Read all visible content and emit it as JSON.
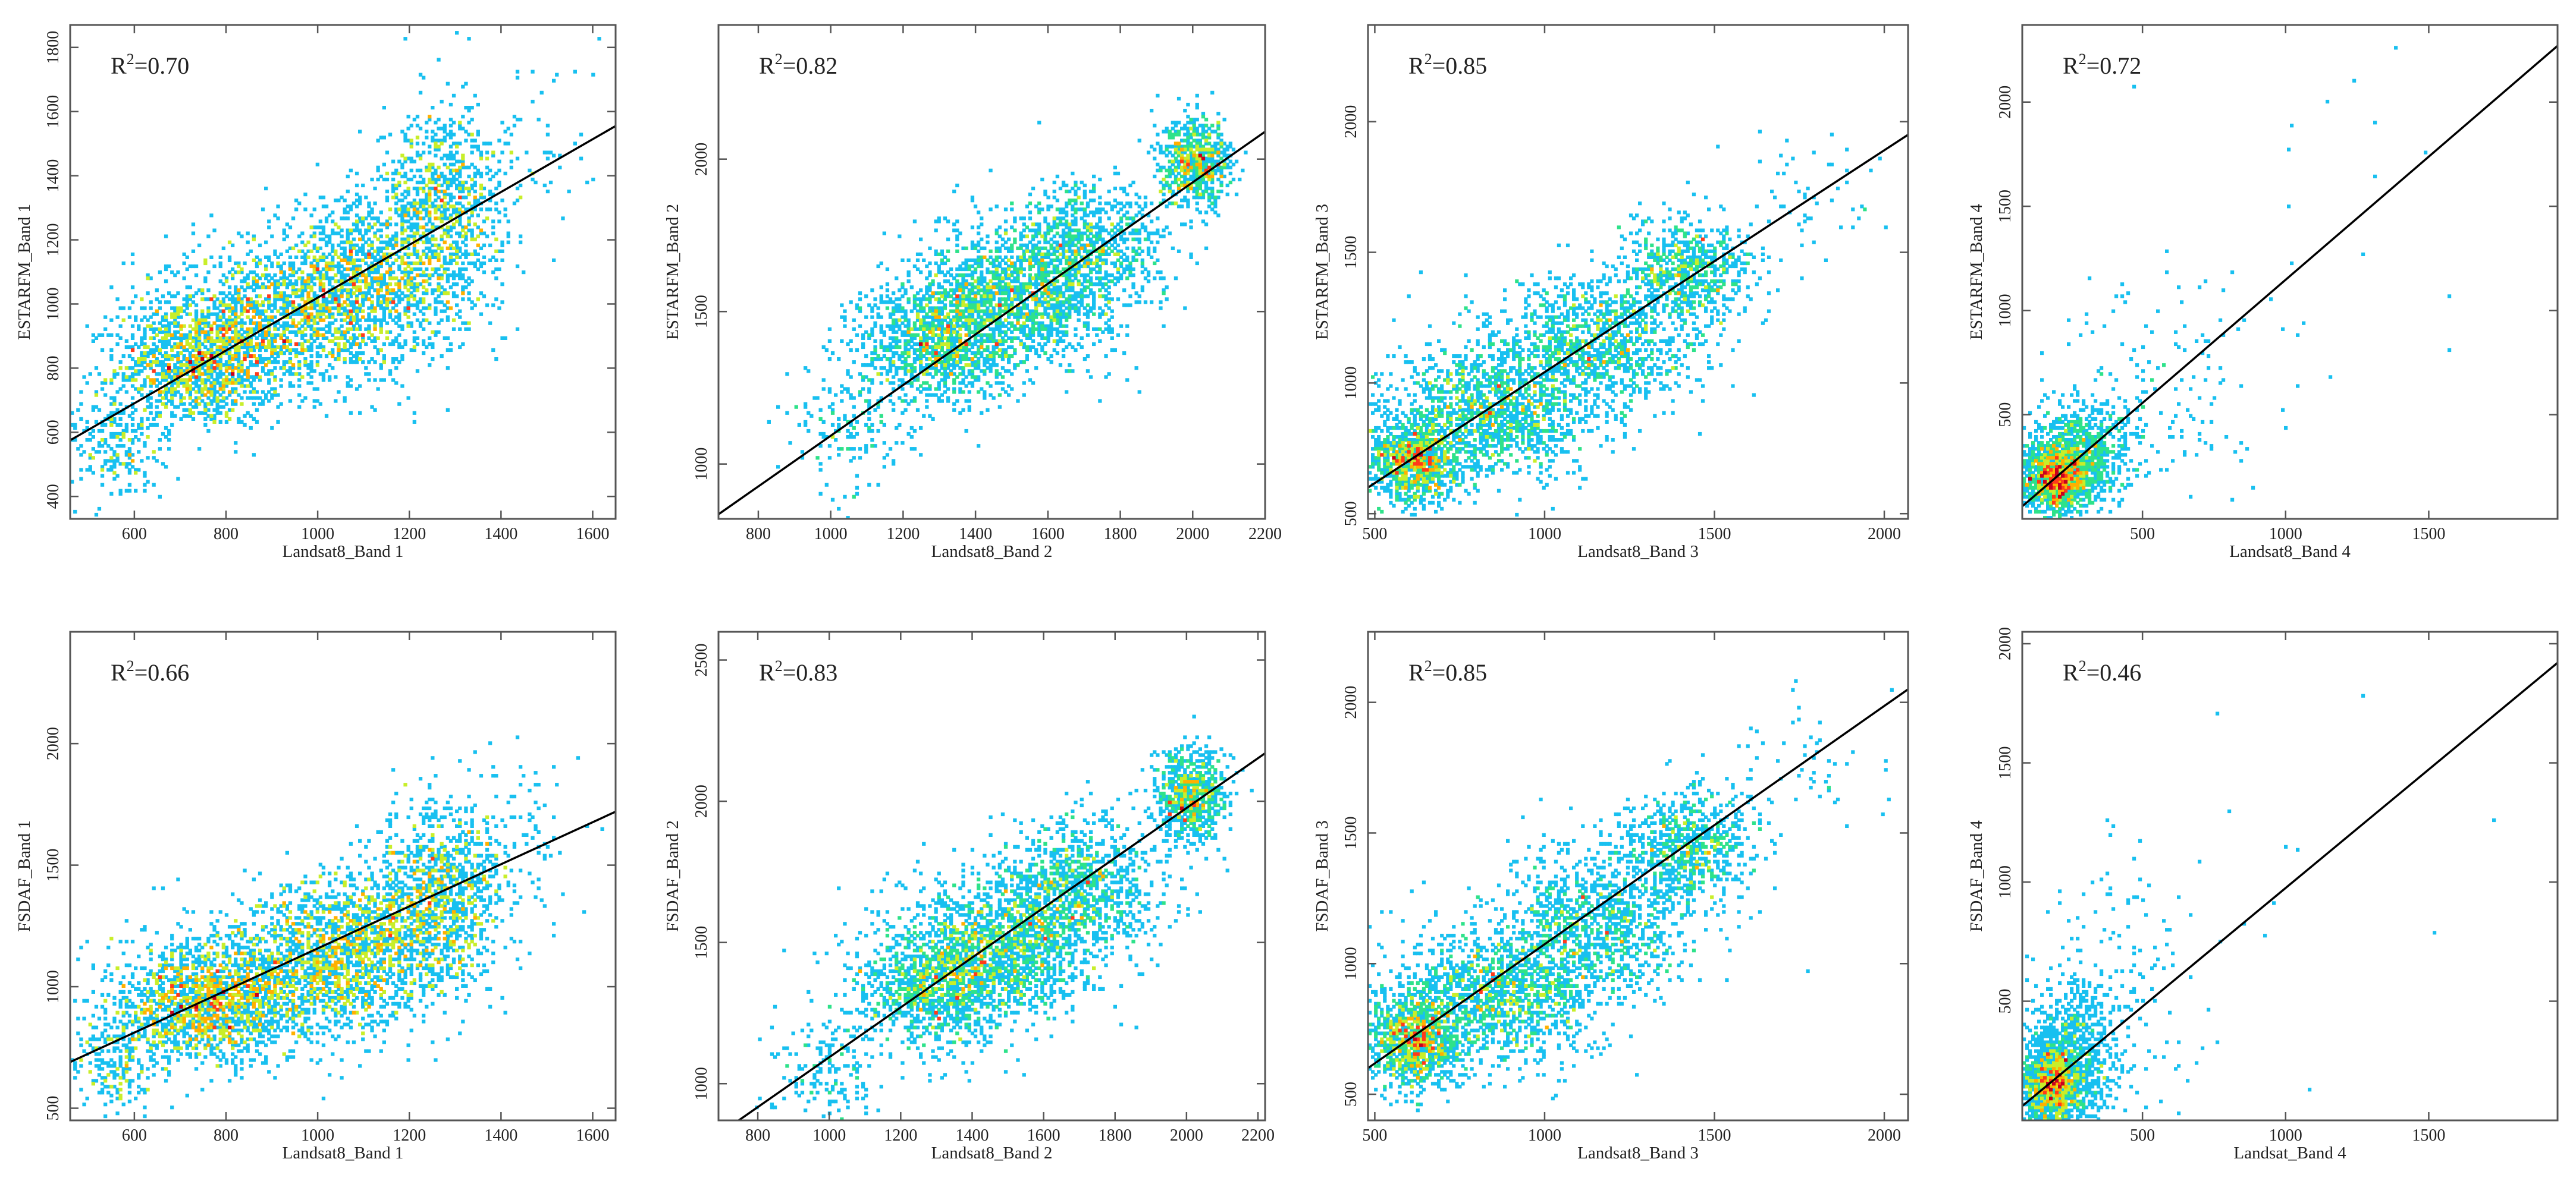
{
  "figure": {
    "colormap": [
      "#3a1d9e",
      "#1f5bff",
      "#18c0f0",
      "#2ee28a",
      "#c8ee2a",
      "#ffb000",
      "#ff3a1a",
      "#c8001e"
    ],
    "fit_line_color": "#000000",
    "frame_color": "#555555"
  },
  "chart_data": [
    {
      "id": "estarfm-b1",
      "type": "scatter",
      "subtype": "density-scatter",
      "xlabel": "Landsat8_Band 1",
      "ylabel": "ESTARFM_Band 1",
      "r2_text": "0.70",
      "xlim": [
        460,
        1650
      ],
      "ylim": [
        330,
        1870
      ],
      "xticks": [
        600,
        800,
        1000,
        1200,
        1400,
        1600
      ],
      "yticks": [
        400,
        600,
        800,
        1000,
        1200,
        1400,
        1600,
        1800
      ],
      "fit_line": [
        [
          460,
          575
        ],
        [
          1650,
          1555
        ]
      ],
      "clusters": [
        {
          "x": 740,
          "y": 800,
          "sx": 90,
          "sy": 90,
          "w": 1.2
        },
        {
          "x": 900,
          "y": 950,
          "sx": 150,
          "sy": 110,
          "w": 1.6
        },
        {
          "x": 1100,
          "y": 1080,
          "sx": 110,
          "sy": 120,
          "w": 1.3
        },
        {
          "x": 1270,
          "y": 1300,
          "sx": 70,
          "sy": 150,
          "w": 1.0
        },
        {
          "x": 560,
          "y": 560,
          "sx": 50,
          "sy": 90,
          "w": 0.25
        },
        {
          "x": 1450,
          "y": 1500,
          "sx": 80,
          "sy": 150,
          "w": 0.08
        }
      ]
    },
    {
      "id": "estarfm-b2",
      "type": "scatter",
      "subtype": "density-scatter",
      "xlabel": "Landsat8_Band 2",
      "ylabel": "ESTARFM_Band 2",
      "r2_text": "0.82",
      "xlim": [
        690,
        2200
      ],
      "ylim": [
        820,
        2440
      ],
      "xticks": [
        800,
        1000,
        1200,
        1400,
        1600,
        1800,
        2000,
        2200
      ],
      "yticks": [
        1000,
        1500,
        2000
      ],
      "fit_line": [
        [
          690,
          835
        ],
        [
          2200,
          2090
        ]
      ],
      "clusters": [
        {
          "x": 1300,
          "y": 1400,
          "sx": 110,
          "sy": 100,
          "w": 1.3
        },
        {
          "x": 1500,
          "y": 1550,
          "sx": 130,
          "sy": 110,
          "w": 1.5
        },
        {
          "x": 1700,
          "y": 1700,
          "sx": 110,
          "sy": 110,
          "w": 1.0
        },
        {
          "x": 2010,
          "y": 1990,
          "sx": 50,
          "sy": 70,
          "w": 0.8
        },
        {
          "x": 1050,
          "y": 1130,
          "sx": 80,
          "sy": 100,
          "w": 0.2
        }
      ]
    },
    {
      "id": "estarfm-b3",
      "type": "scatter",
      "subtype": "density-scatter",
      "xlabel": "Landsat8_Band 3",
      "ylabel": "ESTARFM_Band 3",
      "r2_text": "0.85",
      "xlim": [
        480,
        2070
      ],
      "ylim": [
        480,
        2370
      ],
      "xticks": [
        500,
        1000,
        1500,
        2000
      ],
      "yticks": [
        500,
        1000,
        1500,
        2000
      ],
      "fit_line": [
        [
          480,
          600
        ],
        [
          2070,
          1950
        ]
      ],
      "clusters": [
        {
          "x": 620,
          "y": 700,
          "sx": 70,
          "sy": 80,
          "w": 1.2
        },
        {
          "x": 850,
          "y": 900,
          "sx": 150,
          "sy": 120,
          "w": 1.5
        },
        {
          "x": 1150,
          "y": 1150,
          "sx": 150,
          "sy": 130,
          "w": 1.2
        },
        {
          "x": 1420,
          "y": 1430,
          "sx": 100,
          "sy": 100,
          "w": 0.8
        },
        {
          "x": 1800,
          "y": 1700,
          "sx": 120,
          "sy": 120,
          "w": 0.06
        }
      ]
    },
    {
      "id": "estarfm-b4",
      "type": "scatter",
      "subtype": "density-scatter",
      "xlabel": "Landsat8_Band 4",
      "ylabel": "ESTARFM_Band 4",
      "r2_text": "0.72",
      "xlim": [
        80,
        1950
      ],
      "ylim": [
        0,
        2370
      ],
      "xticks": [
        500,
        1000,
        1500
      ],
      "yticks": [
        500,
        1000,
        1500,
        2000
      ],
      "fit_line": [
        [
          80,
          60
        ],
        [
          1950,
          2270
        ]
      ],
      "clusters": [
        {
          "x": 200,
          "y": 200,
          "sx": 60,
          "sy": 80,
          "w": 1.5
        },
        {
          "x": 300,
          "y": 330,
          "sx": 90,
          "sy": 120,
          "w": 0.8
        },
        {
          "x": 600,
          "y": 650,
          "sx": 200,
          "sy": 260,
          "w": 0.15
        },
        {
          "x": 1200,
          "y": 1500,
          "sx": 300,
          "sy": 400,
          "w": 0.015
        }
      ]
    },
    {
      "id": "fsdaf-b1",
      "type": "scatter",
      "subtype": "density-scatter",
      "xlabel": "Landsat8_Band 1",
      "ylabel": "FSDAF_Band 1",
      "r2_text": "0.66",
      "xlim": [
        460,
        1650
      ],
      "ylim": [
        450,
        2460
      ],
      "xticks": [
        600,
        800,
        1000,
        1200,
        1400,
        1600
      ],
      "yticks": [
        500,
        1000,
        1500,
        2000
      ],
      "fit_line": [
        [
          460,
          690
        ],
        [
          1650,
          1720
        ]
      ],
      "clusters": [
        {
          "x": 740,
          "y": 900,
          "sx": 90,
          "sy": 110,
          "w": 1.2
        },
        {
          "x": 900,
          "y": 1030,
          "sx": 150,
          "sy": 140,
          "w": 1.6
        },
        {
          "x": 1100,
          "y": 1200,
          "sx": 110,
          "sy": 150,
          "w": 1.3
        },
        {
          "x": 1270,
          "y": 1400,
          "sx": 70,
          "sy": 180,
          "w": 1.0
        },
        {
          "x": 560,
          "y": 700,
          "sx": 50,
          "sy": 110,
          "w": 0.25
        },
        {
          "x": 1450,
          "y": 1650,
          "sx": 80,
          "sy": 200,
          "w": 0.08
        }
      ]
    },
    {
      "id": "fsdaf-b2",
      "type": "scatter",
      "subtype": "density-scatter",
      "xlabel": "Landsat8_Band 2",
      "ylabel": "FSDAF_Band 2",
      "r2_text": "0.83",
      "xlim": [
        690,
        2220
      ],
      "ylim": [
        870,
        2600
      ],
      "xticks": [
        800,
        1000,
        1200,
        1400,
        1600,
        1800,
        2000,
        2200
      ],
      "yticks": [
        1000,
        1500,
        2000,
        2500
      ],
      "fit_line": [
        [
          690,
          820
        ],
        [
          2220,
          2170
        ]
      ],
      "clusters": [
        {
          "x": 1300,
          "y": 1350,
          "sx": 110,
          "sy": 110,
          "w": 1.3
        },
        {
          "x": 1500,
          "y": 1500,
          "sx": 130,
          "sy": 120,
          "w": 1.5
        },
        {
          "x": 1700,
          "y": 1700,
          "sx": 110,
          "sy": 120,
          "w": 1.0
        },
        {
          "x": 2010,
          "y": 2010,
          "sx": 50,
          "sy": 80,
          "w": 0.8
        },
        {
          "x": 1000,
          "y": 1050,
          "sx": 80,
          "sy": 100,
          "w": 0.2
        }
      ]
    },
    {
      "id": "fsdaf-b3",
      "type": "scatter",
      "subtype": "density-scatter",
      "xlabel": "Landsat8_Band 3",
      "ylabel": "FSDAF_Band 3",
      "r2_text": "0.85",
      "xlim": [
        480,
        2070
      ],
      "ylim": [
        400,
        2270
      ],
      "xticks": [
        500,
        1000,
        1500,
        2000
      ],
      "yticks": [
        500,
        1000,
        1500,
        2000
      ],
      "fit_line": [
        [
          480,
          600
        ],
        [
          2070,
          2050
        ]
      ],
      "clusters": [
        {
          "x": 620,
          "y": 700,
          "sx": 70,
          "sy": 90,
          "w": 1.2
        },
        {
          "x": 850,
          "y": 880,
          "sx": 150,
          "sy": 130,
          "w": 1.5
        },
        {
          "x": 1150,
          "y": 1150,
          "sx": 150,
          "sy": 140,
          "w": 1.2
        },
        {
          "x": 1420,
          "y": 1450,
          "sx": 100,
          "sy": 110,
          "w": 0.8
        },
        {
          "x": 1800,
          "y": 1750,
          "sx": 120,
          "sy": 130,
          "w": 0.06
        }
      ]
    },
    {
      "id": "fsdaf-b4",
      "type": "scatter",
      "subtype": "density-scatter",
      "xlabel": "Landsat_Band 4",
      "ylabel": "FSDAF_Band 4",
      "r2_text": "0.46",
      "xlim": [
        80,
        1950
      ],
      "ylim": [
        0,
        2050
      ],
      "xticks": [
        500,
        1000,
        1500
      ],
      "yticks": [
        500,
        1000,
        1500,
        2000
      ],
      "fit_line": [
        [
          80,
          60
        ],
        [
          1950,
          1920
        ]
      ],
      "clusters": [
        {
          "x": 180,
          "y": 150,
          "sx": 50,
          "sy": 90,
          "w": 1.5
        },
        {
          "x": 260,
          "y": 280,
          "sx": 70,
          "sy": 150,
          "w": 0.9
        },
        {
          "x": 400,
          "y": 500,
          "sx": 150,
          "sy": 300,
          "w": 0.2
        },
        {
          "x": 900,
          "y": 1100,
          "sx": 350,
          "sy": 400,
          "w": 0.015
        }
      ]
    }
  ]
}
